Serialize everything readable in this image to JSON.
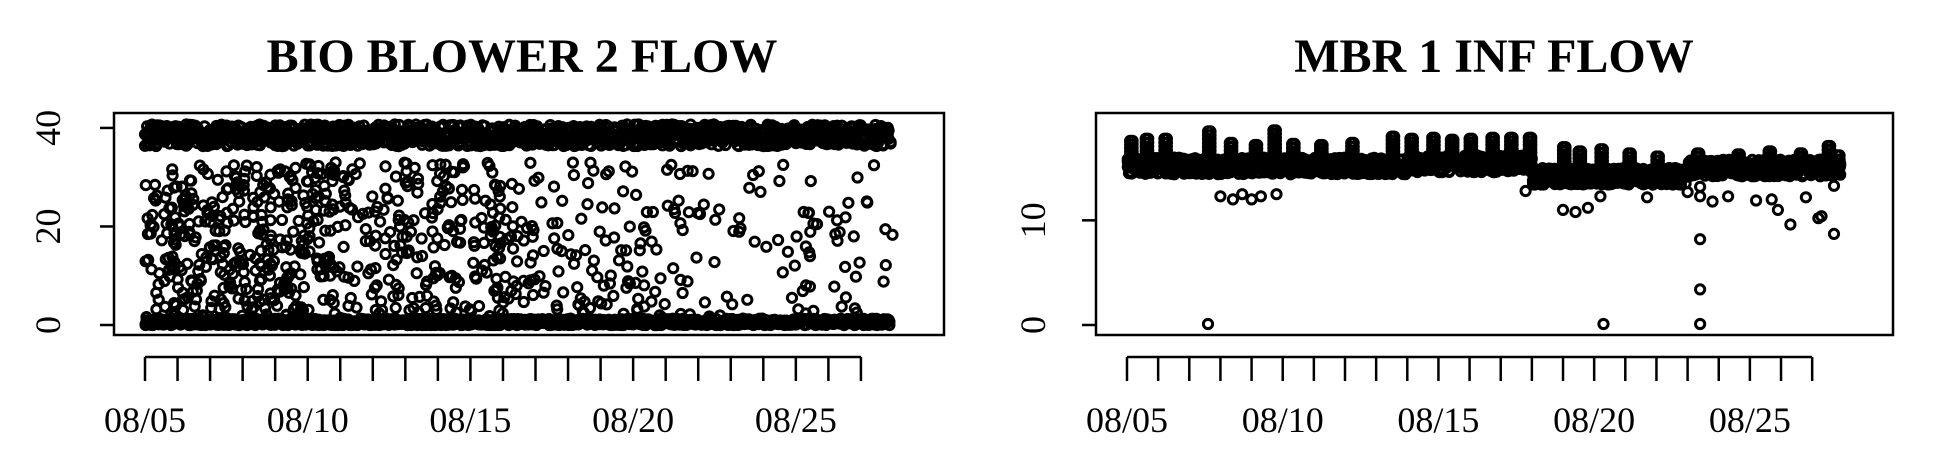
{
  "chart_data": [
    {
      "type": "scatter",
      "title": "BIO BLOWER 2 FLOW",
      "xlabel": "",
      "ylabel": "",
      "x_start": "08/04",
      "x_end": "08/28",
      "xlim": [
        0,
        23.6
      ],
      "ylim": [
        0,
        41
      ],
      "y_ticks": [
        0,
        20,
        40
      ],
      "y_tick_labels": [
        "0",
        "20",
        "40"
      ],
      "x_tick_labels": [
        "08/05",
        "08/10",
        "08/15",
        "08/20",
        "08/25"
      ],
      "x_tick_positions": [
        0,
        5,
        10,
        15,
        20
      ],
      "minor_x_ticks": [
        0,
        1,
        2,
        3,
        4,
        5,
        6,
        7,
        8,
        9,
        10,
        11,
        12,
        13,
        14,
        15,
        16,
        17,
        18,
        19,
        20,
        21,
        22
      ],
      "grid": false,
      "legend": "none",
      "point_color": "#000000",
      "bands": [
        {
          "x_range": [
            0,
            22.9
          ],
          "y_center": 38.5,
          "y_spread": 2.2,
          "density": 14
        },
        {
          "x_range": [
            0,
            22.9
          ],
          "y_center": 0.6,
          "y_spread": 0.7,
          "density": 10
        }
      ],
      "scatter_regions": [
        {
          "x_range": [
            0,
            6
          ],
          "y_range": [
            1,
            33
          ],
          "count": 380
        },
        {
          "x_range": [
            6,
            12
          ],
          "y_range": [
            1,
            33
          ],
          "count": 240
        },
        {
          "x_range": [
            12,
            17
          ],
          "y_range": [
            1,
            33
          ],
          "count": 110
        },
        {
          "x_range": [
            17,
            23
          ],
          "y_range": [
            1,
            33
          ],
          "count": 70
        }
      ]
    },
    {
      "type": "scatter",
      "title": "MBR 1 INF FLOW",
      "xlabel": "",
      "ylabel": "",
      "x_start": "08/04",
      "x_end": "08/28",
      "xlim": [
        0,
        23.6
      ],
      "ylim": [
        0,
        19.3
      ],
      "y_ticks": [
        0,
        10
      ],
      "y_tick_labels": [
        "0",
        "10"
      ],
      "x_tick_labels": [
        "08/05",
        "08/10",
        "08/15",
        "08/20",
        "08/25"
      ],
      "x_tick_positions": [
        0,
        5,
        10,
        15,
        20
      ],
      "minor_x_ticks": [
        0,
        1,
        2,
        3,
        4,
        5,
        6,
        7,
        8,
        9,
        10,
        11,
        12,
        13,
        14,
        15,
        16,
        17,
        18,
        19,
        20,
        21,
        22
      ],
      "grid": false,
      "legend": "none",
      "point_color": "#000000",
      "baseline": {
        "x_range": [
          0,
          22.9
        ],
        "segments": [
          {
            "x_range": [
              0,
              9
            ],
            "y": 15.2
          },
          {
            "x_range": [
              9,
              13
            ],
            "y": 15.4
          },
          {
            "x_range": [
              13,
              18
            ],
            "y": 14.2
          },
          {
            "x_range": [
              18,
              22.9
            ],
            "y": 15.0
          }
        ],
        "y_spread": 0.8,
        "density": 10
      },
      "spikes": [
        {
          "x": 0.1,
          "y_top": 17.6
        },
        {
          "x": 0.6,
          "y_top": 17.8
        },
        {
          "x": 1.2,
          "y_top": 17.8
        },
        {
          "x": 2.6,
          "y_top": 18.5
        },
        {
          "x": 3.3,
          "y_top": 17.4
        },
        {
          "x": 4.1,
          "y_top": 17.2
        },
        {
          "x": 4.7,
          "y_top": 18.6
        },
        {
          "x": 5.3,
          "y_top": 17.3
        },
        {
          "x": 6.2,
          "y_top": 17.2
        },
        {
          "x": 7.2,
          "y_top": 17.4
        },
        {
          "x": 8.5,
          "y_top": 18.0
        },
        {
          "x": 9.1,
          "y_top": 17.8
        },
        {
          "x": 9.8,
          "y_top": 17.9
        },
        {
          "x": 10.4,
          "y_top": 17.7
        },
        {
          "x": 11.0,
          "y_top": 17.8
        },
        {
          "x": 11.7,
          "y_top": 17.9
        },
        {
          "x": 12.3,
          "y_top": 17.9
        },
        {
          "x": 12.9,
          "y_top": 17.9
        },
        {
          "x": 14.0,
          "y_top": 17.0
        },
        {
          "x": 14.5,
          "y_top": 16.6
        },
        {
          "x": 15.2,
          "y_top": 16.8
        },
        {
          "x": 16.1,
          "y_top": 16.4
        },
        {
          "x": 17.0,
          "y_top": 16.1
        },
        {
          "x": 18.3,
          "y_top": 16.4
        },
        {
          "x": 19.6,
          "y_top": 16.3
        },
        {
          "x": 20.6,
          "y_top": 16.6
        },
        {
          "x": 21.6,
          "y_top": 16.4
        },
        {
          "x": 22.5,
          "y_top": 17.1
        },
        {
          "x": 22.8,
          "y_top": 16.2
        }
      ],
      "outliers": [
        {
          "x": 2.6,
          "y": 0.1
        },
        {
          "x": 3.0,
          "y": 12.3
        },
        {
          "x": 3.4,
          "y": 12.0
        },
        {
          "x": 3.7,
          "y": 12.5
        },
        {
          "x": 4.0,
          "y": 12.0
        },
        {
          "x": 4.3,
          "y": 12.3
        },
        {
          "x": 4.8,
          "y": 12.5
        },
        {
          "x": 12.8,
          "y": 12.8
        },
        {
          "x": 14.0,
          "y": 11.0
        },
        {
          "x": 14.4,
          "y": 10.8
        },
        {
          "x": 14.8,
          "y": 11.2
        },
        {
          "x": 15.2,
          "y": 12.3
        },
        {
          "x": 15.3,
          "y": 0.1
        },
        {
          "x": 16.7,
          "y": 12.2
        },
        {
          "x": 18.0,
          "y": 12.7
        },
        {
          "x": 18.4,
          "y": 12.3
        },
        {
          "x": 18.8,
          "y": 11.8
        },
        {
          "x": 19.3,
          "y": 12.3
        },
        {
          "x": 20.2,
          "y": 11.9
        },
        {
          "x": 20.7,
          "y": 12.0
        },
        {
          "x": 20.9,
          "y": 11.0
        },
        {
          "x": 21.3,
          "y": 9.6
        },
        {
          "x": 21.8,
          "y": 12.2
        },
        {
          "x": 22.2,
          "y": 10.2
        },
        {
          "x": 22.3,
          "y": 10.4
        },
        {
          "x": 22.7,
          "y": 8.7
        },
        {
          "x": 22.7,
          "y": 13.3
        }
      ],
      "cluster_outliers": [
        {
          "x": 18.4,
          "y": 0.1
        },
        {
          "x": 18.4,
          "y": 3.4
        },
        {
          "x": 18.4,
          "y": 8.2
        },
        {
          "x": 18.4,
          "y": 13.2
        }
      ]
    }
  ]
}
